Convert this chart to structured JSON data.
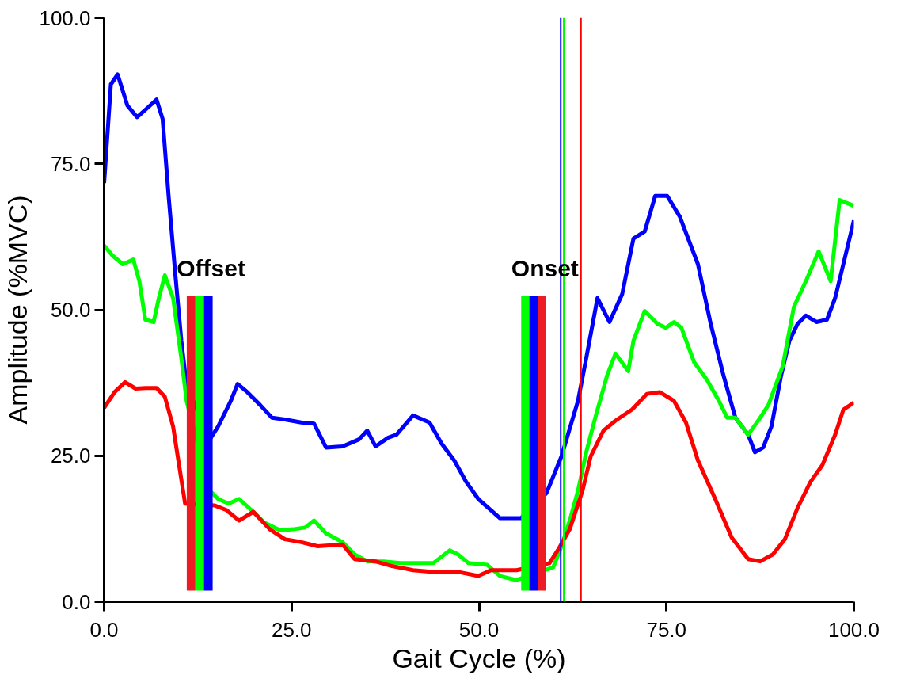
{
  "chart_data": {
    "type": "line",
    "xlabel": "Gait Cycle (%)",
    "ylabel": "Amplitude (%MVC)",
    "xlim": [
      0,
      100
    ],
    "ylim": [
      0,
      100
    ],
    "xticks": [
      {
        "value": 0,
        "label": "0.0"
      },
      {
        "value": 25,
        "label": "25.0"
      },
      {
        "value": 50,
        "label": "50.0"
      },
      {
        "value": 75,
        "label": "75.0"
      },
      {
        "value": 100,
        "label": "100.0"
      }
    ],
    "yticks": [
      {
        "value": 0,
        "label": "0.0"
      },
      {
        "value": 25,
        "label": "25.0"
      },
      {
        "value": 50,
        "label": "50.0"
      },
      {
        "value": 75,
        "label": "75.0"
      },
      {
        "value": 100,
        "label": "100.0"
      }
    ],
    "grid": false,
    "marker": "none",
    "line_style": "solid",
    "series": [
      {
        "color": "#0000ff",
        "x": [
          0,
          0.9,
          1.8,
          3.1,
          4.4,
          5.8,
          7,
          7.8,
          8.6,
          9.5,
          10.3,
          11,
          14.1,
          15.2,
          16.9,
          17.8,
          19.1,
          20.8,
          22.4,
          24.1,
          26.3,
          28,
          29.6,
          31.8,
          34,
          35.1,
          36.2,
          37.9,
          39,
          41.2,
          43.4,
          45,
          46.7,
          48.3,
          49.9,
          52.8,
          55.6,
          59,
          61,
          63.2,
          64.3,
          65.8,
          67.4,
          69.1,
          70.6,
          72.1,
          73.5,
          75.1,
          76.8,
          79.2,
          80.9,
          82.6,
          84.2,
          85.9,
          86.8,
          87.9,
          89,
          90.3,
          91.4,
          92.5,
          93.6,
          95,
          96.4,
          97.5,
          100
        ],
        "values": [
          71.7,
          88.6,
          90.3,
          85,
          83,
          84.6,
          86,
          82.7,
          69.5,
          56,
          44.7,
          37,
          27.8,
          30,
          34.4,
          37.3,
          35.9,
          33.7,
          31.5,
          31.2,
          30.7,
          30.5,
          26.4,
          26.6,
          27.8,
          29.3,
          26.6,
          28.1,
          28.6,
          31.9,
          30.7,
          27.1,
          24.2,
          20.5,
          17.6,
          14.3,
          14.3,
          18.6,
          24.9,
          34.4,
          41.7,
          52,
          47.9,
          52.7,
          62.2,
          63.4,
          69.5,
          69.5,
          65.9,
          57.8,
          47.6,
          38.8,
          31.5,
          28.6,
          25.6,
          26.4,
          30,
          38.8,
          44.7,
          47.6,
          49,
          47.9,
          48.3,
          52,
          65.3
        ]
      },
      {
        "color": "#00ff00",
        "x": [
          0,
          1.1,
          2.5,
          3.9,
          4.7,
          5.5,
          6.6,
          7.3,
          8.1,
          9.2,
          10.3,
          11,
          14.1,
          15.2,
          16.6,
          18,
          19.9,
          21.3,
          23.5,
          25.2,
          26.8,
          28,
          29.6,
          31.8,
          33.4,
          35.1,
          37.3,
          39.5,
          41.7,
          43.9,
          46.1,
          47.2,
          48.6,
          51.1,
          52.8,
          55,
          59.9,
          61,
          62.1,
          63.2,
          64.3,
          65.5,
          67.1,
          68.2,
          69.9,
          70.6,
          72.1,
          73.8,
          74.9,
          76,
          77,
          78.7,
          80.4,
          82,
          83.1,
          84.2,
          85.9,
          87.5,
          88.6,
          90.5,
          92,
          93.6,
          95.3,
          96.9,
          98.1,
          100
        ],
        "values": [
          61,
          59.3,
          57.8,
          58.6,
          54.9,
          48.3,
          47.9,
          52,
          55.9,
          52,
          41.7,
          34.4,
          19,
          17.6,
          16.8,
          17.6,
          15.4,
          13.6,
          12.2,
          12.4,
          12.7,
          13.9,
          11.7,
          10.2,
          8.1,
          6.9,
          6.9,
          6.6,
          6.6,
          6.6,
          8.8,
          8.1,
          6.6,
          6.3,
          4.4,
          3.7,
          5.9,
          9.5,
          13.9,
          19,
          25.6,
          31.5,
          38.8,
          42.5,
          39.5,
          44.7,
          49.8,
          47.6,
          46.9,
          47.9,
          46.9,
          41,
          38,
          34.4,
          31.5,
          31.5,
          28.6,
          31.5,
          33.7,
          40.3,
          50.5,
          54.9,
          60,
          54.9,
          68.8,
          67.8
        ]
      },
      {
        "color": "#ff0000",
        "x": [
          0,
          1.4,
          2.8,
          4.2,
          5.5,
          7,
          8.1,
          9.2,
          10,
          10.8,
          14.7,
          16.3,
          18,
          19.9,
          22.1,
          24.1,
          26.3,
          28.5,
          31.8,
          33.4,
          36.2,
          38.4,
          41.2,
          43.9,
          47.2,
          49.9,
          51.6,
          55,
          59.4,
          60.5,
          62.1,
          63.8,
          64.9,
          66.6,
          68.2,
          70.4,
          72.4,
          74.1,
          76,
          77.6,
          79.2,
          81.5,
          83.7,
          85.9,
          87.5,
          89.2,
          90.8,
          92.5,
          94.2,
          95.8,
          97.5,
          98.6,
          100
        ],
        "values": [
          33.2,
          35.9,
          37.6,
          36.5,
          36.6,
          36.6,
          35.1,
          30,
          23.4,
          16.8,
          16.5,
          15.7,
          13.9,
          15.4,
          12.4,
          10.7,
          10.2,
          9.5,
          9.8,
          7.3,
          6.9,
          6.1,
          5.4,
          5.1,
          5.1,
          4.4,
          5.4,
          5.4,
          6.6,
          8.8,
          12.4,
          19,
          24.9,
          29.3,
          31,
          32.9,
          35.6,
          35.9,
          34.4,
          30.7,
          24.2,
          17.6,
          11,
          7.3,
          6.9,
          8.1,
          10.7,
          16.1,
          20.5,
          23.4,
          28.6,
          32.9,
          34.1
        ]
      },
      {
        "type": "bar",
        "color": "#ed1c24",
        "x": [
          11.6,
          58.4
        ],
        "base": [
          1.9,
          1.9
        ],
        "values": [
          50.5,
          50.5
        ]
      },
      {
        "type": "bar",
        "color": "#00ff00",
        "x": [
          12.8,
          56.2
        ],
        "base": [
          1.9,
          1.9
        ],
        "values": [
          50.5,
          50.5
        ]
      },
      {
        "type": "bar",
        "color": "#0000ff",
        "x": [
          13.9,
          57.3
        ],
        "base": [
          1.9,
          1.9
        ],
        "values": [
          50.5,
          50.5
        ]
      }
    ],
    "ref_lines": [
      {
        "axis": "x",
        "value": 60.9,
        "color": "#0000ff"
      },
      {
        "axis": "x",
        "value": 61.3,
        "color": "#00ff00"
      },
      {
        "axis": "x",
        "value": 63.6,
        "color": "#ff0000"
      }
    ],
    "annotations": [
      "Offset",
      "Onset"
    ]
  }
}
